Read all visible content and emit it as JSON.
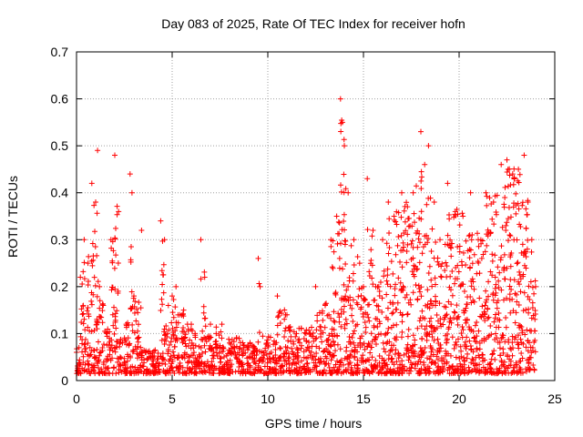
{
  "chart_data": {
    "type": "scatter",
    "title": "Day 083 of 2025, Rate Of TEC Index for receiver hofn",
    "xlabel": "GPS time / hours",
    "ylabel": "ROTI / TECUs",
    "xlim": [
      0,
      25
    ],
    "ylim": [
      0,
      0.7
    ],
    "xticks": [
      "0",
      "5",
      "10",
      "15",
      "20",
      "25"
    ],
    "yticks": [
      "0",
      "0.1",
      "0.2",
      "0.3",
      "0.4",
      "0.5",
      "0.6",
      "0.7"
    ],
    "grid": true,
    "marker": "+",
    "marker_color": "#ff0000",
    "series": [
      {
        "x": [
          0.0,
          0.2,
          0.4,
          0.6,
          0.8,
          1.0,
          1.1,
          1.2,
          1.4,
          1.6,
          1.8,
          2.0,
          2.2,
          2.4,
          2.6,
          2.8,
          2.9,
          3.0,
          3.4,
          3.6,
          3.8,
          4.0,
          4.4,
          4.6,
          4.8,
          5.0,
          5.2,
          5.4,
          5.6,
          5.8,
          6.0,
          6.2,
          6.5,
          6.7,
          7.0,
          7.3,
          7.6,
          8.0,
          8.5,
          9.0,
          9.5,
          9.6,
          10.0,
          10.5,
          11.0,
          11.5,
          12.0,
          12.5,
          13.0,
          13.3,
          13.6,
          13.8,
          13.9,
          14.0,
          14.2,
          14.5,
          14.8,
          15.0,
          15.2,
          15.5,
          15.8,
          16.0,
          16.3,
          16.6,
          17.0,
          17.3,
          17.6,
          18.0,
          18.2,
          18.4,
          18.7,
          19.0,
          19.4,
          19.8,
          20.2,
          20.6,
          21.0,
          21.4,
          21.8,
          22.2,
          22.5,
          22.8,
          23.1,
          23.4,
          23.6,
          23.8,
          24.0
        ],
        "y": [
          0.06,
          0.22,
          0.3,
          0.25,
          0.42,
          0.38,
          0.49,
          0.2,
          0.16,
          0.1,
          0.3,
          0.48,
          0.36,
          0.08,
          0.12,
          0.44,
          0.4,
          0.18,
          0.32,
          0.06,
          0.05,
          0.05,
          0.34,
          0.3,
          0.16,
          0.18,
          0.2,
          0.14,
          0.15,
          0.12,
          0.12,
          0.1,
          0.3,
          0.22,
          0.12,
          0.1,
          0.12,
          0.08,
          0.09,
          0.07,
          0.26,
          0.2,
          0.08,
          0.18,
          0.14,
          0.1,
          0.1,
          0.2,
          0.16,
          0.3,
          0.35,
          0.6,
          0.55,
          0.5,
          0.4,
          0.3,
          0.25,
          0.2,
          0.43,
          0.32,
          0.2,
          0.3,
          0.38,
          0.35,
          0.4,
          0.37,
          0.4,
          0.53,
          0.46,
          0.5,
          0.38,
          0.3,
          0.42,
          0.36,
          0.35,
          0.4,
          0.3,
          0.4,
          0.38,
          0.46,
          0.47,
          0.44,
          0.45,
          0.48,
          0.38,
          0.3,
          0.2
        ]
      }
    ]
  }
}
